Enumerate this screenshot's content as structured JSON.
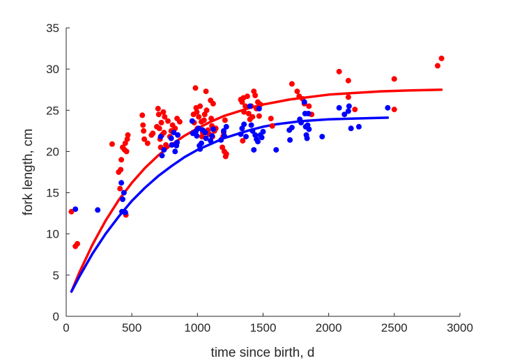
{
  "chart_data": {
    "type": "scatter",
    "title": "",
    "xlabel": "time since birth, d",
    "ylabel": "fork length, cm",
    "xlim": [
      0,
      3000
    ],
    "ylim": [
      0,
      35
    ],
    "xticks": [
      0,
      500,
      1000,
      1500,
      2000,
      2500,
      3000
    ],
    "yticks": [
      0,
      5,
      10,
      15,
      20,
      25,
      30,
      35
    ],
    "grid": false,
    "legend": "none",
    "series": [
      {
        "color": "#ff0000",
        "kind": "scatter",
        "points": [
          [
            40,
            12.7
          ],
          [
            70,
            8.5
          ],
          [
            85,
            8.8
          ],
          [
            350,
            20.9
          ],
          [
            400,
            17.5
          ],
          [
            410,
            15.5
          ],
          [
            415,
            17.8
          ],
          [
            420,
            19
          ],
          [
            430,
            20.5
          ],
          [
            445,
            20.2
          ],
          [
            450,
            21
          ],
          [
            455,
            12.3
          ],
          [
            460,
            20
          ],
          [
            465,
            21.5
          ],
          [
            470,
            22
          ],
          [
            580,
            24.4
          ],
          [
            585,
            23.2
          ],
          [
            590,
            22.5
          ],
          [
            595,
            21.5
          ],
          [
            620,
            21
          ],
          [
            650,
            22
          ],
          [
            660,
            22.2
          ],
          [
            690,
            23
          ],
          [
            700,
            25.2
          ],
          [
            705,
            24.5
          ],
          [
            710,
            22.8
          ],
          [
            715,
            21.5
          ],
          [
            720,
            20.5
          ],
          [
            725,
            23.5
          ],
          [
            730,
            22
          ],
          [
            740,
            24.8
          ],
          [
            745,
            22.3
          ],
          [
            750,
            24.2
          ],
          [
            760,
            20.8
          ],
          [
            775,
            23.7
          ],
          [
            790,
            21.8
          ],
          [
            800,
            22.5
          ],
          [
            810,
            23.2
          ],
          [
            830,
            22.8
          ],
          [
            845,
            24
          ],
          [
            850,
            22
          ],
          [
            865,
            23.6
          ],
          [
            970,
            24.5
          ],
          [
            975,
            23.5
          ],
          [
            985,
            27.7
          ],
          [
            990,
            25.3
          ],
          [
            995,
            24.8
          ],
          [
            1000,
            22.8
          ],
          [
            1010,
            24.2
          ],
          [
            1020,
            25.5
          ],
          [
            1030,
            23.6
          ],
          [
            1035,
            21.8
          ],
          [
            1040,
            22.3
          ],
          [
            1050,
            23.8
          ],
          [
            1055,
            24.5
          ],
          [
            1065,
            27.3
          ],
          [
            1070,
            25
          ],
          [
            1080,
            22.6
          ],
          [
            1090,
            22.1
          ],
          [
            1100,
            26.2
          ],
          [
            1105,
            24
          ],
          [
            1110,
            23.1
          ],
          [
            1115,
            21.8
          ],
          [
            1120,
            25.8
          ],
          [
            1130,
            22.5
          ],
          [
            1140,
            22.8
          ],
          [
            1190,
            20.5
          ],
          [
            1195,
            21.8
          ],
          [
            1200,
            22.3
          ],
          [
            1205,
            20
          ],
          [
            1210,
            23.8
          ],
          [
            1215,
            19.4
          ],
          [
            1220,
            19.7
          ],
          [
            1330,
            26.3
          ],
          [
            1340,
            26
          ],
          [
            1345,
            21.3
          ],
          [
            1350,
            26.5
          ],
          [
            1355,
            24.8
          ],
          [
            1365,
            25.5
          ],
          [
            1380,
            26.7
          ],
          [
            1390,
            24.6
          ],
          [
            1400,
            23.9
          ],
          [
            1410,
            25.5
          ],
          [
            1420,
            24.2
          ],
          [
            1430,
            27.3
          ],
          [
            1440,
            26.8
          ],
          [
            1450,
            25.2
          ],
          [
            1460,
            26
          ],
          [
            1470,
            24.3
          ],
          [
            1480,
            25.7
          ],
          [
            1560,
            24
          ],
          [
            1570,
            23.1
          ],
          [
            1720,
            28.2
          ],
          [
            1760,
            27.3
          ],
          [
            1775,
            26.7
          ],
          [
            1800,
            26.4
          ],
          [
            1815,
            25.8
          ],
          [
            1850,
            25.5
          ],
          [
            1870,
            24.5
          ],
          [
            2080,
            29.7
          ],
          [
            2150,
            28.6
          ],
          [
            2150,
            26.6
          ],
          [
            2200,
            25.1
          ],
          [
            2500,
            28.8
          ],
          [
            2500,
            25.1
          ],
          [
            2830,
            30.4
          ],
          [
            2860,
            31.3
          ]
        ]
      },
      {
        "color": "#0000ff",
        "kind": "scatter",
        "points": [
          [
            70,
            13
          ],
          [
            240,
            12.9
          ],
          [
            420,
            16.2
          ],
          [
            425,
            12.7
          ],
          [
            430,
            14.2
          ],
          [
            440,
            15
          ],
          [
            450,
            12.6
          ],
          [
            720,
            21.8
          ],
          [
            730,
            19.5
          ],
          [
            745,
            20.2
          ],
          [
            800,
            21.6
          ],
          [
            805,
            20.8
          ],
          [
            820,
            22.3
          ],
          [
            830,
            20
          ],
          [
            840,
            20.7
          ],
          [
            845,
            21.1
          ],
          [
            850,
            22
          ],
          [
            960,
            23.7
          ],
          [
            965,
            22.2
          ],
          [
            990,
            22.5
          ],
          [
            995,
            21.9
          ],
          [
            1010,
            22.8
          ],
          [
            1015,
            20.7
          ],
          [
            1020,
            20.3
          ],
          [
            1030,
            21
          ],
          [
            1040,
            22.6
          ],
          [
            1060,
            22.3
          ],
          [
            1065,
            21.6
          ],
          [
            1100,
            21.3
          ],
          [
            1110,
            21.9
          ],
          [
            1120,
            22.7
          ],
          [
            1180,
            21.4
          ],
          [
            1200,
            22.5
          ],
          [
            1205,
            21.9
          ],
          [
            1220,
            23
          ],
          [
            1330,
            22.1
          ],
          [
            1340,
            22.8
          ],
          [
            1355,
            23.3
          ],
          [
            1370,
            21.8
          ],
          [
            1400,
            25.5
          ],
          [
            1410,
            23.2
          ],
          [
            1420,
            22.5
          ],
          [
            1430,
            20.2
          ],
          [
            1440,
            22
          ],
          [
            1450,
            21.5
          ],
          [
            1460,
            21.2
          ],
          [
            1470,
            25.2
          ],
          [
            1480,
            22
          ],
          [
            1490,
            21.7
          ],
          [
            1500,
            22.4
          ],
          [
            1600,
            20.2
          ],
          [
            1700,
            22.6
          ],
          [
            1705,
            21.4
          ],
          [
            1720,
            22.9
          ],
          [
            1780,
            23.9
          ],
          [
            1790,
            23.5
          ],
          [
            1815,
            26
          ],
          [
            1820,
            24.6
          ],
          [
            1825,
            23
          ],
          [
            1830,
            22
          ],
          [
            1835,
            21.6
          ],
          [
            1840,
            23.2
          ],
          [
            1845,
            24.6
          ],
          [
            1850,
            22.7
          ],
          [
            1950,
            21.8
          ],
          [
            2080,
            25.3
          ],
          [
            2120,
            24.5
          ],
          [
            2150,
            24.9
          ],
          [
            2155,
            25.5
          ],
          [
            2170,
            22.8
          ],
          [
            2230,
            23
          ],
          [
            2450,
            25.3
          ]
        ]
      },
      {
        "color": "#ff0000",
        "kind": "line",
        "points": [
          [
            40,
            3
          ],
          [
            100,
            5.3
          ],
          [
            200,
            8.7
          ],
          [
            300,
            11.6
          ],
          [
            400,
            14.1
          ],
          [
            500,
            16.2
          ],
          [
            600,
            18
          ],
          [
            700,
            19.5
          ],
          [
            800,
            20.8
          ],
          [
            900,
            21.9
          ],
          [
            1000,
            22.8
          ],
          [
            1100,
            23.6
          ],
          [
            1200,
            24.3
          ],
          [
            1300,
            24.8
          ],
          [
            1400,
            25.3
          ],
          [
            1500,
            25.7
          ],
          [
            1600,
            26
          ],
          [
            1700,
            26.3
          ],
          [
            1800,
            26.5
          ],
          [
            1900,
            26.7
          ],
          [
            2000,
            26.9
          ],
          [
            2200,
            27.1
          ],
          [
            2400,
            27.3
          ],
          [
            2600,
            27.4
          ],
          [
            2860,
            27.5
          ]
        ]
      },
      {
        "color": "#0000ff",
        "kind": "line",
        "points": [
          [
            40,
            3
          ],
          [
            100,
            4.8
          ],
          [
            200,
            7.6
          ],
          [
            300,
            10
          ],
          [
            400,
            12.1
          ],
          [
            500,
            14
          ],
          [
            600,
            15.6
          ],
          [
            700,
            17
          ],
          [
            800,
            18.2
          ],
          [
            900,
            19.3
          ],
          [
            1000,
            20.2
          ],
          [
            1100,
            20.9
          ],
          [
            1200,
            21.6
          ],
          [
            1300,
            22.1
          ],
          [
            1400,
            22.6
          ],
          [
            1500,
            23
          ],
          [
            1600,
            23.3
          ],
          [
            1700,
            23.5
          ],
          [
            1800,
            23.7
          ],
          [
            1900,
            23.8
          ],
          [
            2000,
            23.9
          ],
          [
            2200,
            24
          ],
          [
            2450,
            24.1
          ]
        ]
      }
    ]
  }
}
